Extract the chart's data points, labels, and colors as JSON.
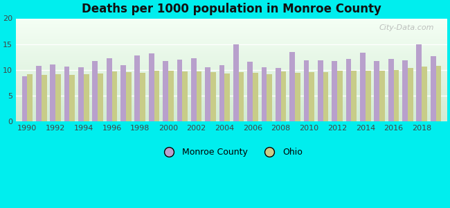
{
  "title": "Deaths per 1000 population in Monroe County",
  "background_color": "#00EEEE",
  "years": [
    1990,
    1991,
    1992,
    1993,
    1994,
    1995,
    1996,
    1997,
    1998,
    1999,
    2000,
    2001,
    2002,
    2003,
    2004,
    2005,
    2006,
    2007,
    2008,
    2009,
    2010,
    2011,
    2012,
    2013,
    2014,
    2015,
    2016,
    2017,
    2018,
    2019
  ],
  "monroe_values": [
    8.7,
    10.8,
    11.1,
    10.7,
    10.5,
    11.7,
    12.2,
    10.9,
    12.8,
    13.2,
    11.7,
    12.0,
    12.3,
    10.5,
    10.9,
    14.9,
    11.6,
    10.5,
    10.4,
    13.5,
    11.9,
    11.9,
    11.7,
    12.1,
    13.4,
    11.7,
    12.1,
    11.9,
    15.0,
    12.7
  ],
  "ohio_values": [
    9.1,
    9.0,
    9.1,
    9.0,
    9.2,
    9.3,
    9.7,
    9.5,
    9.4,
    9.8,
    9.9,
    9.7,
    9.7,
    9.6,
    9.3,
    9.6,
    9.4,
    9.2,
    9.7,
    9.4,
    9.5,
    9.6,
    9.9,
    9.8,
    9.9,
    9.9,
    10.0,
    10.4,
    10.6,
    10.8
  ],
  "monroe_color": "#b8a0cc",
  "ohio_color": "#c8cc88",
  "ylim": [
    0,
    20
  ],
  "yticks": [
    0,
    5,
    10,
    15,
    20
  ],
  "watermark": "City-Data.com",
  "legend_monroe": "Monroe County",
  "legend_ohio": "Ohio"
}
